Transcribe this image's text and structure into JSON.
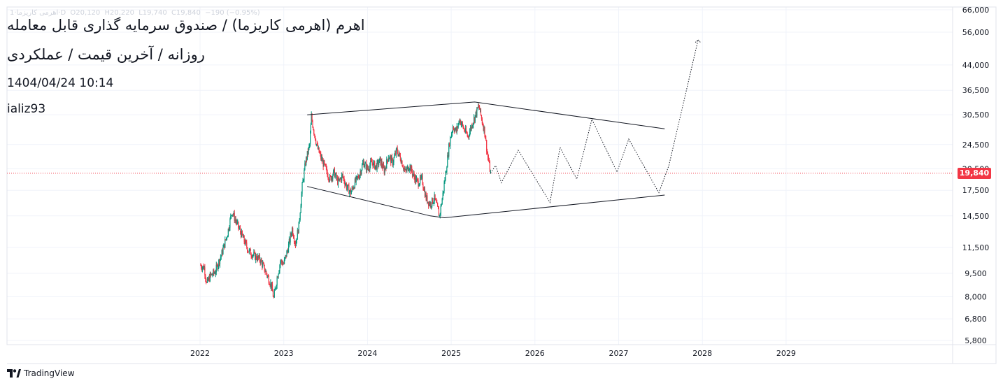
{
  "header": {
    "legend_symbol": "اهرمی کاریزما·1·D",
    "legend_open": "O20,120",
    "legend_high": "H20,220",
    "legend_low": "L19,740",
    "legend_close": "C19,840",
    "legend_change": "−190 (−0.95%)",
    "title_line1": "اهرم (اهرمی کاریزما) / صندوق سرمایه گذاری قابل معامله",
    "title_line2": "روزانه / آخرین قیمت / عملکردی",
    "datetime": "1404/04/24  10:14",
    "author": "ializ93"
  },
  "footer": {
    "brand": "TradingView"
  },
  "colors": {
    "up": "#089981",
    "down": "#f23645",
    "line": "#131722",
    "grid": "#f0f3fa",
    "last_price": "#f23645"
  },
  "chart_data": {
    "type": "candlestick",
    "title": "اهرم (اهرمی کاریزما) / صندوق سرمایه گذاری قابل معامله",
    "interval": "روزانه",
    "y_scale": "log",
    "ylim": [
      5200,
      66000
    ],
    "xlim": [
      2021.5,
      2030.2
    ],
    "x_ticks": [
      2022,
      2023,
      2024,
      2025,
      2026,
      2027,
      2028,
      2029
    ],
    "x_tick_labels": [
      "2022",
      "2023",
      "2024",
      "2025",
      "2026",
      "2027",
      "2028",
      "2029"
    ],
    "y_ticks": [
      5800,
      6800,
      8000,
      9500,
      11500,
      14500,
      17500,
      20500,
      24500,
      30500,
      36500,
      44000,
      56000,
      66000
    ],
    "y_tick_labels": [
      "5,800",
      "6,800",
      "8,000",
      "9,500",
      "11,500",
      "14,500",
      "17,500",
      "20,500",
      "24,500",
      "30,500",
      "36,500",
      "44,000",
      "56,000",
      "66,000"
    ],
    "last_price": 19840,
    "last_price_label": "19,840",
    "price_path": [
      [
        2022.0,
        10100
      ],
      [
        2022.05,
        9900
      ],
      [
        2022.08,
        8800
      ],
      [
        2022.12,
        9300
      ],
      [
        2022.18,
        9600
      ],
      [
        2022.26,
        11000
      ],
      [
        2022.33,
        12800
      ],
      [
        2022.38,
        15000
      ],
      [
        2022.45,
        13500
      ],
      [
        2022.52,
        12200
      ],
      [
        2022.58,
        11200
      ],
      [
        2022.65,
        10800
      ],
      [
        2022.72,
        10500
      ],
      [
        2022.8,
        9400
      ],
      [
        2022.85,
        8700
      ],
      [
        2022.88,
        7900
      ],
      [
        2022.92,
        9200
      ],
      [
        2022.96,
        10400
      ],
      [
        2023.0,
        10200
      ],
      [
        2023.05,
        11400
      ],
      [
        2023.1,
        13200
      ],
      [
        2023.14,
        11800
      ],
      [
        2023.18,
        13500
      ],
      [
        2023.22,
        18000
      ],
      [
        2023.26,
        21500
      ],
      [
        2023.31,
        24500
      ],
      [
        2023.33,
        30000
      ],
      [
        2023.36,
        27000
      ],
      [
        2023.4,
        24000
      ],
      [
        2023.45,
        22000
      ],
      [
        2023.5,
        20500
      ],
      [
        2023.55,
        19000
      ],
      [
        2023.6,
        20000
      ],
      [
        2023.65,
        18500
      ],
      [
        2023.7,
        19500
      ],
      [
        2023.75,
        18000
      ],
      [
        2023.8,
        17200
      ],
      [
        2023.85,
        18500
      ],
      [
        2023.9,
        19500
      ],
      [
        2023.95,
        21500
      ],
      [
        2024.0,
        20500
      ],
      [
        2024.05,
        21500
      ],
      [
        2024.1,
        20800
      ],
      [
        2024.15,
        21800
      ],
      [
        2024.2,
        20200
      ],
      [
        2024.25,
        22500
      ],
      [
        2024.3,
        21500
      ],
      [
        2024.35,
        23500
      ],
      [
        2024.4,
        22000
      ],
      [
        2024.45,
        20000
      ],
      [
        2024.5,
        21000
      ],
      [
        2024.55,
        19500
      ],
      [
        2024.6,
        18500
      ],
      [
        2024.65,
        19000
      ],
      [
        2024.7,
        16500
      ],
      [
        2024.75,
        15800
      ],
      [
        2024.8,
        16500
      ],
      [
        2024.83,
        15500
      ],
      [
        2024.86,
        14500
      ],
      [
        2024.9,
        17000
      ],
      [
        2024.94,
        20500
      ],
      [
        2024.98,
        25000
      ],
      [
        2025.02,
        28000
      ],
      [
        2025.06,
        27000
      ],
      [
        2025.1,
        29500
      ],
      [
        2025.15,
        27500
      ],
      [
        2025.2,
        26000
      ],
      [
        2025.25,
        28500
      ],
      [
        2025.3,
        31000
      ],
      [
        2025.33,
        32500
      ],
      [
        2025.37,
        29000
      ],
      [
        2025.4,
        27000
      ],
      [
        2025.43,
        23000
      ],
      [
        2025.47,
        19840
      ]
    ],
    "trendlines": [
      {
        "name": "upper-resistance",
        "points": [
          [
            2023.28,
            30500
          ],
          [
            2025.28,
            33500
          ],
          [
            2027.55,
            27500
          ]
        ]
      },
      {
        "name": "lower-support",
        "points": [
          [
            2023.28,
            18000
          ],
          [
            2024.75,
            14500
          ],
          [
            2024.92,
            14300
          ],
          [
            2027.55,
            16900
          ]
        ]
      }
    ],
    "projection": [
      [
        2025.47,
        19840
      ],
      [
        2025.53,
        21000
      ],
      [
        2025.6,
        18500
      ],
      [
        2025.8,
        23500
      ],
      [
        2026.18,
        16000
      ],
      [
        2026.3,
        24000
      ],
      [
        2026.5,
        19000
      ],
      [
        2026.68,
        29500
      ],
      [
        2026.98,
        20000
      ],
      [
        2027.12,
        25500
      ],
      [
        2027.48,
        17200
      ],
      [
        2027.6,
        21000
      ],
      [
        2027.95,
        53000
      ]
    ]
  }
}
